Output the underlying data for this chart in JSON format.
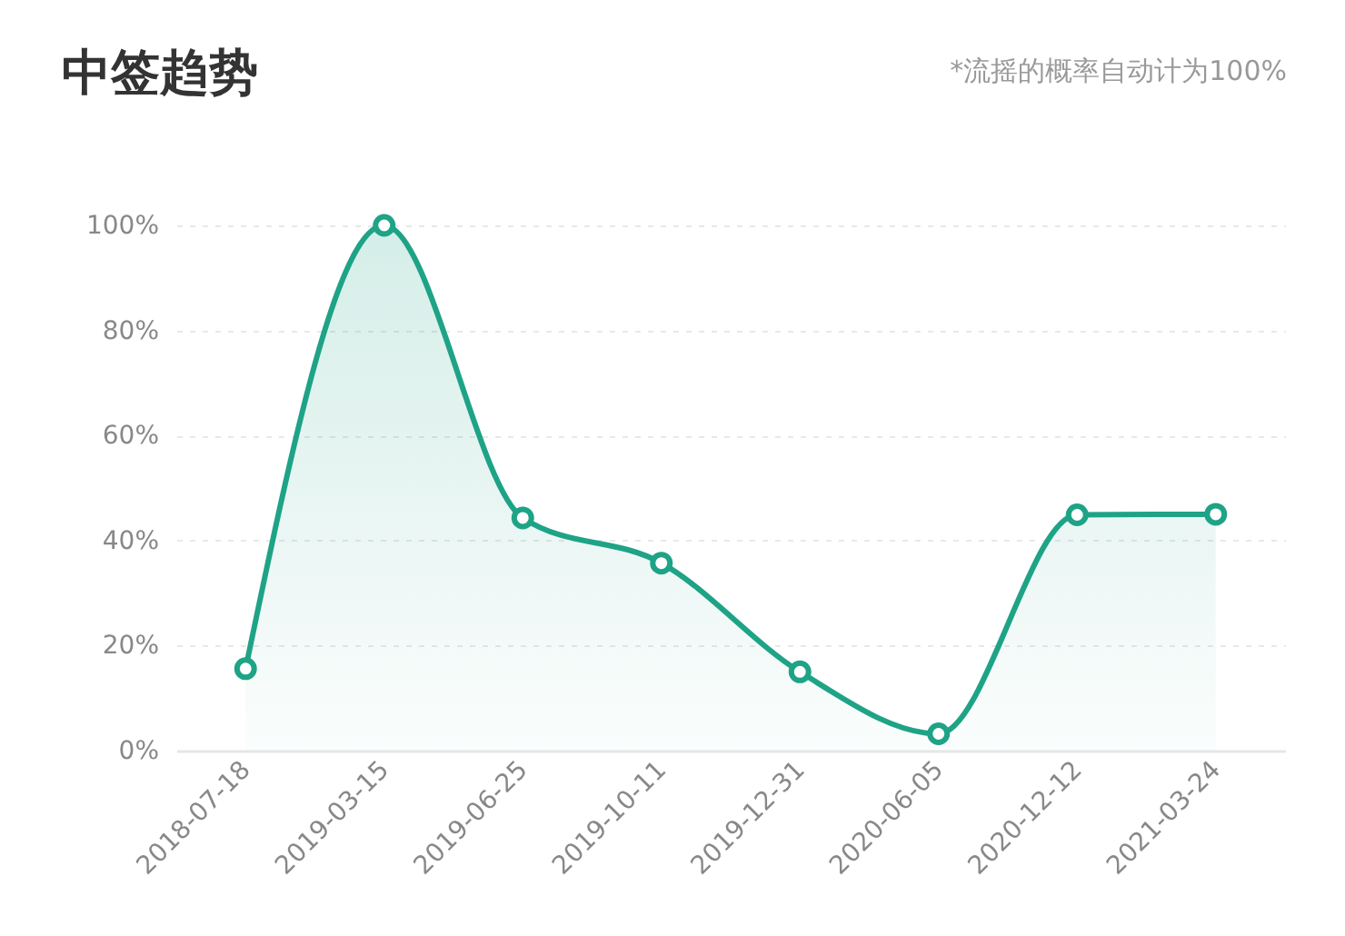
{
  "chart_data": {
    "type": "area",
    "title": "中签趋势",
    "subtitle": "*流摇的概率自动计为100%",
    "categories": [
      "2018-07-18",
      "2019-03-15",
      "2019-06-25",
      "2019-10-11",
      "2019-12-31",
      "2020-06-05",
      "2020-12-12",
      "2021-03-24"
    ],
    "series": [
      {
        "color": "#1ea386",
        "values": [
          15.6,
          100,
          44.3,
          35.7,
          15,
          3.2,
          44.9,
          45
        ]
      }
    ],
    "ylim": [
      0,
      100
    ],
    "yticks": [
      {
        "value": 0,
        "label": "0%"
      },
      {
        "value": 20,
        "label": "20%"
      },
      {
        "value": 40,
        "label": "40%"
      },
      {
        "value": 60,
        "label": "60%"
      },
      {
        "value": 80,
        "label": "80%"
      },
      {
        "value": 100,
        "label": "100%"
      }
    ],
    "grid": "y",
    "marker": "circle"
  }
}
